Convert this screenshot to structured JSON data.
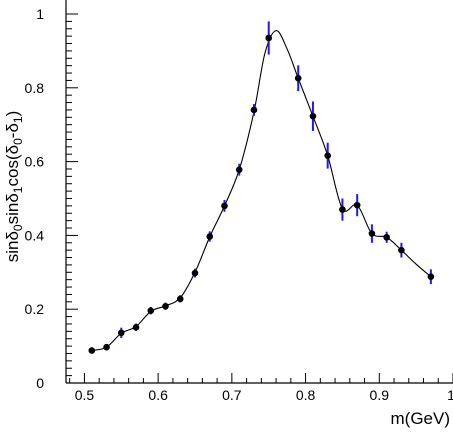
{
  "chart_data": {
    "type": "scatter",
    "title": "",
    "xlabel": "m(GeV)",
    "ylabel_parts": [
      "sin",
      "δ",
      "0",
      "sin",
      "δ",
      "1",
      "cos(",
      "δ",
      "0",
      "-",
      "δ",
      "1",
      ")"
    ],
    "xlim": [
      0.475,
      1.0
    ],
    "ylim": [
      0,
      1.0
    ],
    "xticks": [
      0.5,
      0.6,
      0.7,
      0.8,
      0.9,
      1.0
    ],
    "xtick_labels": [
      "0.5",
      "0.6",
      "0.7",
      "0.8",
      "0.9",
      "1"
    ],
    "yticks": [
      0,
      0.2,
      0.4,
      0.6,
      0.8,
      1.0
    ],
    "ytick_labels": [
      "0",
      "0.2",
      "0.4",
      "0.6",
      "0.8",
      "1"
    ],
    "grid": false,
    "series": [
      {
        "points": [
          {
            "x": 0.51,
            "y": 0.088,
            "err": 0.008
          },
          {
            "x": 0.53,
            "y": 0.097,
            "err": 0.008
          },
          {
            "x": 0.55,
            "y": 0.136,
            "err": 0.014
          },
          {
            "x": 0.57,
            "y": 0.151,
            "err": 0.01
          },
          {
            "x": 0.59,
            "y": 0.196,
            "err": 0.01
          },
          {
            "x": 0.61,
            "y": 0.208,
            "err": 0.01
          },
          {
            "x": 0.63,
            "y": 0.228,
            "err": 0.01
          },
          {
            "x": 0.65,
            "y": 0.298,
            "err": 0.012
          },
          {
            "x": 0.67,
            "y": 0.397,
            "err": 0.014
          },
          {
            "x": 0.69,
            "y": 0.48,
            "err": 0.016
          },
          {
            "x": 0.71,
            "y": 0.578,
            "err": 0.016
          },
          {
            "x": 0.73,
            "y": 0.74,
            "err": 0.016
          },
          {
            "x": 0.75,
            "y": 0.935,
            "err": 0.045
          },
          {
            "x": 0.79,
            "y": 0.826,
            "err": 0.035
          },
          {
            "x": 0.81,
            "y": 0.723,
            "err": 0.04
          },
          {
            "x": 0.83,
            "y": 0.616,
            "err": 0.035
          },
          {
            "x": 0.85,
            "y": 0.47,
            "err": 0.03
          },
          {
            "x": 0.87,
            "y": 0.482,
            "err": 0.03
          },
          {
            "x": 0.89,
            "y": 0.405,
            "err": 0.025
          },
          {
            "x": 0.91,
            "y": 0.395,
            "err": 0.015
          },
          {
            "x": 0.93,
            "y": 0.36,
            "err": 0.02
          },
          {
            "x": 0.97,
            "y": 0.288,
            "err": 0.02
          }
        ]
      }
    ],
    "fit_curve": [
      [
        0.51,
        0.088
      ],
      [
        0.53,
        0.097
      ],
      [
        0.55,
        0.135
      ],
      [
        0.57,
        0.153
      ],
      [
        0.59,
        0.194
      ],
      [
        0.61,
        0.209
      ],
      [
        0.63,
        0.231
      ],
      [
        0.65,
        0.3
      ],
      [
        0.67,
        0.396
      ],
      [
        0.69,
        0.48
      ],
      [
        0.71,
        0.578
      ],
      [
        0.73,
        0.735
      ],
      [
        0.745,
        0.895
      ],
      [
        0.76,
        0.955
      ],
      [
        0.775,
        0.905
      ],
      [
        0.79,
        0.826
      ],
      [
        0.81,
        0.723
      ],
      [
        0.83,
        0.616
      ],
      [
        0.85,
        0.472
      ],
      [
        0.87,
        0.482
      ],
      [
        0.89,
        0.405
      ],
      [
        0.91,
        0.395
      ],
      [
        0.93,
        0.36
      ],
      [
        0.95,
        0.322
      ],
      [
        0.97,
        0.288
      ]
    ],
    "colors": {
      "axis": "#000000",
      "marker": "#000000",
      "error_bar": "#1a1aff",
      "curve": "#000000"
    }
  }
}
